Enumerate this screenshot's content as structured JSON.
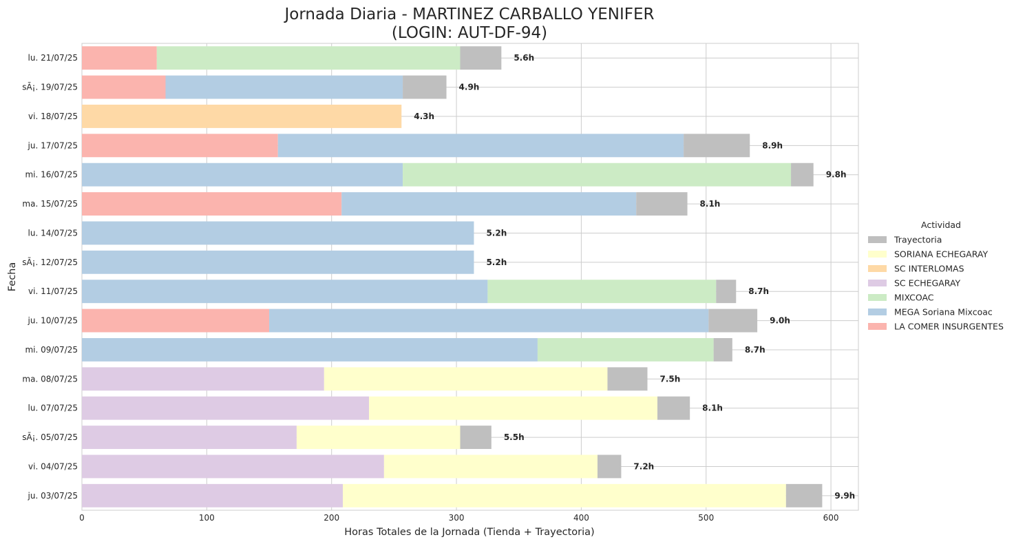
{
  "chart_data": {
    "type": "bar",
    "orientation": "horizontal",
    "stacked": true,
    "title_line1": "Jornada Diaria - MARTINEZ CARBALLO YENIFER",
    "title_line2": "(LOGIN: AUT-DF-94)",
    "xlabel": "Horas Totales de la Jornada (Tienda + Trayectoria)",
    "ylabel": "Fecha",
    "xlim": [
      0,
      622
    ],
    "xticks": [
      0,
      100,
      200,
      300,
      400,
      500,
      600
    ],
    "grid": true,
    "legend": {
      "title": "Actividad",
      "placement": "right",
      "entries": [
        "Trayectoria",
        "SORIANA ECHEGARAY",
        "SC INTERLOMAS",
        "SC ECHEGARAY",
        "MIXCOAC",
        "MEGA Soriana Mixcoac",
        "LA COMER INSURGENTES"
      ]
    },
    "colors": {
      "Trayectoria": "#bfbfbf",
      "SORIANA ECHEGARAY": "#ffffcc",
      "SC INTERLOMAS": "#fed9a6",
      "SC ECHEGARAY": "#decbe4",
      "MIXCOAC": "#ccebc5",
      "MEGA Soriana Mixcoac": "#b3cde3",
      "LA COMER INSURGENTES": "#fbb4ae"
    },
    "rows": [
      {
        "date": "lu. 21/07/25",
        "label": "5.6h",
        "segments": [
          {
            "series": "LA COMER INSURGENTES",
            "value": 60
          },
          {
            "series": "MIXCOAC",
            "value": 243
          },
          {
            "series": "Trayectoria",
            "value": 33
          }
        ]
      },
      {
        "date": "sÃ¡. 19/07/25",
        "label": "4.9h",
        "segments": [
          {
            "series": "LA COMER INSURGENTES",
            "value": 67
          },
          {
            "series": "MEGA Soriana Mixcoac",
            "value": 190
          },
          {
            "series": "Trayectoria",
            "value": 35
          }
        ]
      },
      {
        "date": "vi. 18/07/25",
        "label": "4.3h",
        "segments": [
          {
            "series": "SC INTERLOMAS",
            "value": 256
          }
        ]
      },
      {
        "date": "ju. 17/07/25",
        "label": "8.9h",
        "segments": [
          {
            "series": "LA COMER INSURGENTES",
            "value": 157
          },
          {
            "series": "MEGA Soriana Mixcoac",
            "value": 325
          },
          {
            "series": "Trayectoria",
            "value": 53
          }
        ]
      },
      {
        "date": "mi. 16/07/25",
        "label": "9.8h",
        "segments": [
          {
            "series": "MEGA Soriana Mixcoac",
            "value": 257
          },
          {
            "series": "MIXCOAC",
            "value": 311
          },
          {
            "series": "Trayectoria",
            "value": 18
          }
        ]
      },
      {
        "date": "ma. 15/07/25",
        "label": "8.1h",
        "segments": [
          {
            "series": "LA COMER INSURGENTES",
            "value": 208
          },
          {
            "series": "MEGA Soriana Mixcoac",
            "value": 236
          },
          {
            "series": "Trayectoria",
            "value": 41
          }
        ]
      },
      {
        "date": "lu. 14/07/25",
        "label": "5.2h",
        "segments": [
          {
            "series": "MEGA Soriana Mixcoac",
            "value": 314
          }
        ]
      },
      {
        "date": "sÃ¡. 12/07/25",
        "label": "5.2h",
        "segments": [
          {
            "series": "MEGA Soriana Mixcoac",
            "value": 314
          }
        ]
      },
      {
        "date": "vi. 11/07/25",
        "label": "8.7h",
        "segments": [
          {
            "series": "MEGA Soriana Mixcoac",
            "value": 325
          },
          {
            "series": "MIXCOAC",
            "value": 183
          },
          {
            "series": "Trayectoria",
            "value": 16
          }
        ]
      },
      {
        "date": "ju. 10/07/25",
        "label": "9.0h",
        "segments": [
          {
            "series": "LA COMER INSURGENTES",
            "value": 150
          },
          {
            "series": "MEGA Soriana Mixcoac",
            "value": 352
          },
          {
            "series": "Trayectoria",
            "value": 39
          }
        ]
      },
      {
        "date": "mi. 09/07/25",
        "label": "8.7h",
        "segments": [
          {
            "series": "MEGA Soriana Mixcoac",
            "value": 365
          },
          {
            "series": "MIXCOAC",
            "value": 141
          },
          {
            "series": "Trayectoria",
            "value": 15
          }
        ]
      },
      {
        "date": "ma. 08/07/25",
        "label": "7.5h",
        "segments": [
          {
            "series": "SC ECHEGARAY",
            "value": 194
          },
          {
            "series": "SORIANA ECHEGARAY",
            "value": 227
          },
          {
            "series": "Trayectoria",
            "value": 32
          }
        ]
      },
      {
        "date": "lu. 07/07/25",
        "label": "8.1h",
        "segments": [
          {
            "series": "SC ECHEGARAY",
            "value": 230
          },
          {
            "series": "SORIANA ECHEGARAY",
            "value": 231
          },
          {
            "series": "Trayectoria",
            "value": 26
          }
        ]
      },
      {
        "date": "sÃ¡. 05/07/25",
        "label": "5.5h",
        "segments": [
          {
            "series": "SC ECHEGARAY",
            "value": 172
          },
          {
            "series": "SORIANA ECHEGARAY",
            "value": 131
          },
          {
            "series": "Trayectoria",
            "value": 25
          }
        ]
      },
      {
        "date": "vi. 04/07/25",
        "label": "7.2h",
        "segments": [
          {
            "series": "SC ECHEGARAY",
            "value": 242
          },
          {
            "series": "SORIANA ECHEGARAY",
            "value": 171
          },
          {
            "series": "Trayectoria",
            "value": 19
          }
        ]
      },
      {
        "date": "ju. 03/07/25",
        "label": "9.9h",
        "segments": [
          {
            "series": "SC ECHEGARAY",
            "value": 209
          },
          {
            "series": "SORIANA ECHEGARAY",
            "value": 355
          },
          {
            "series": "Trayectoria",
            "value": 29
          }
        ]
      }
    ]
  }
}
